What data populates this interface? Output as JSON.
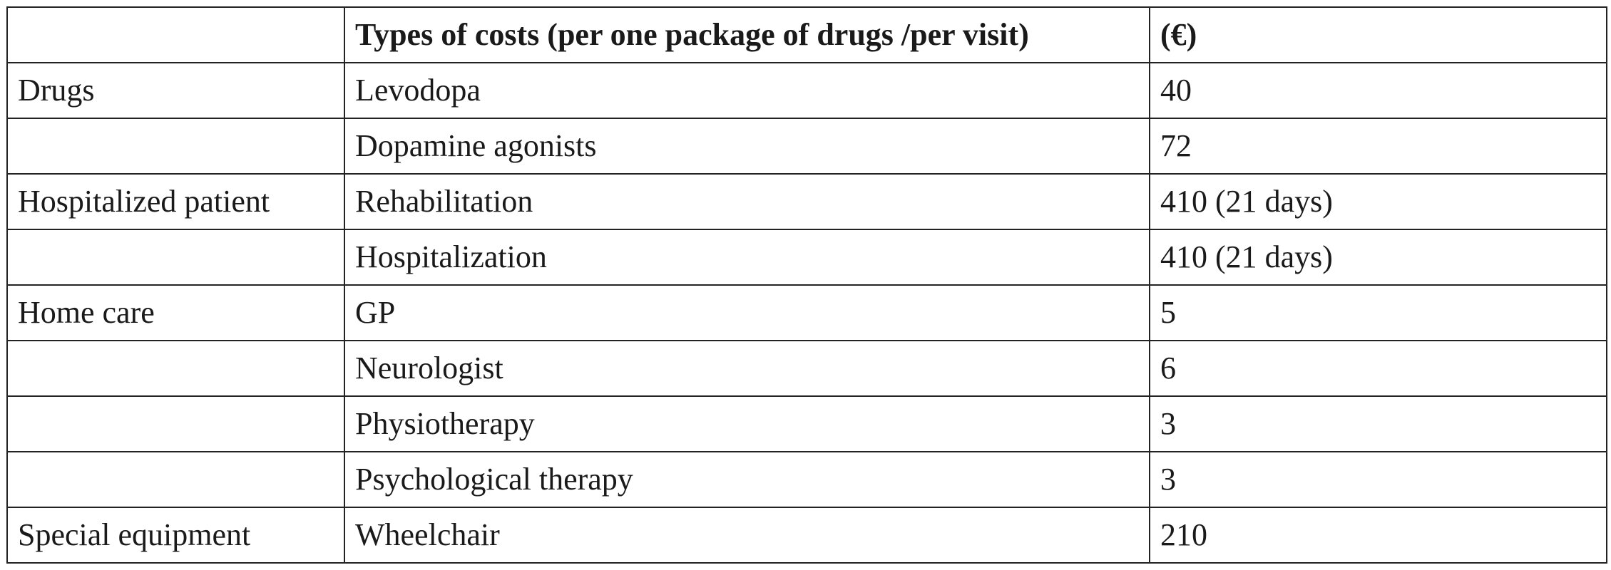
{
  "table": {
    "headers": [
      "",
      "Types of costs (per one package of drugs /per visit)",
      "(€)"
    ],
    "rows": [
      [
        "Drugs",
        "Levodopa",
        "40"
      ],
      [
        "",
        "Dopamine agonists",
        "72"
      ],
      [
        "Hospitalized patient",
        "Rehabilitation",
        "410 (21 days)"
      ],
      [
        "",
        "Hospitalization",
        "410 (21 days)"
      ],
      [
        "Home care",
        "GP",
        "5"
      ],
      [
        "",
        "Neurologist",
        "6"
      ],
      [
        "",
        "Physiotherapy",
        "3"
      ],
      [
        "",
        "Psychological therapy",
        "3"
      ],
      [
        "Special equipment",
        "Wheelchair",
        "210"
      ]
    ]
  }
}
